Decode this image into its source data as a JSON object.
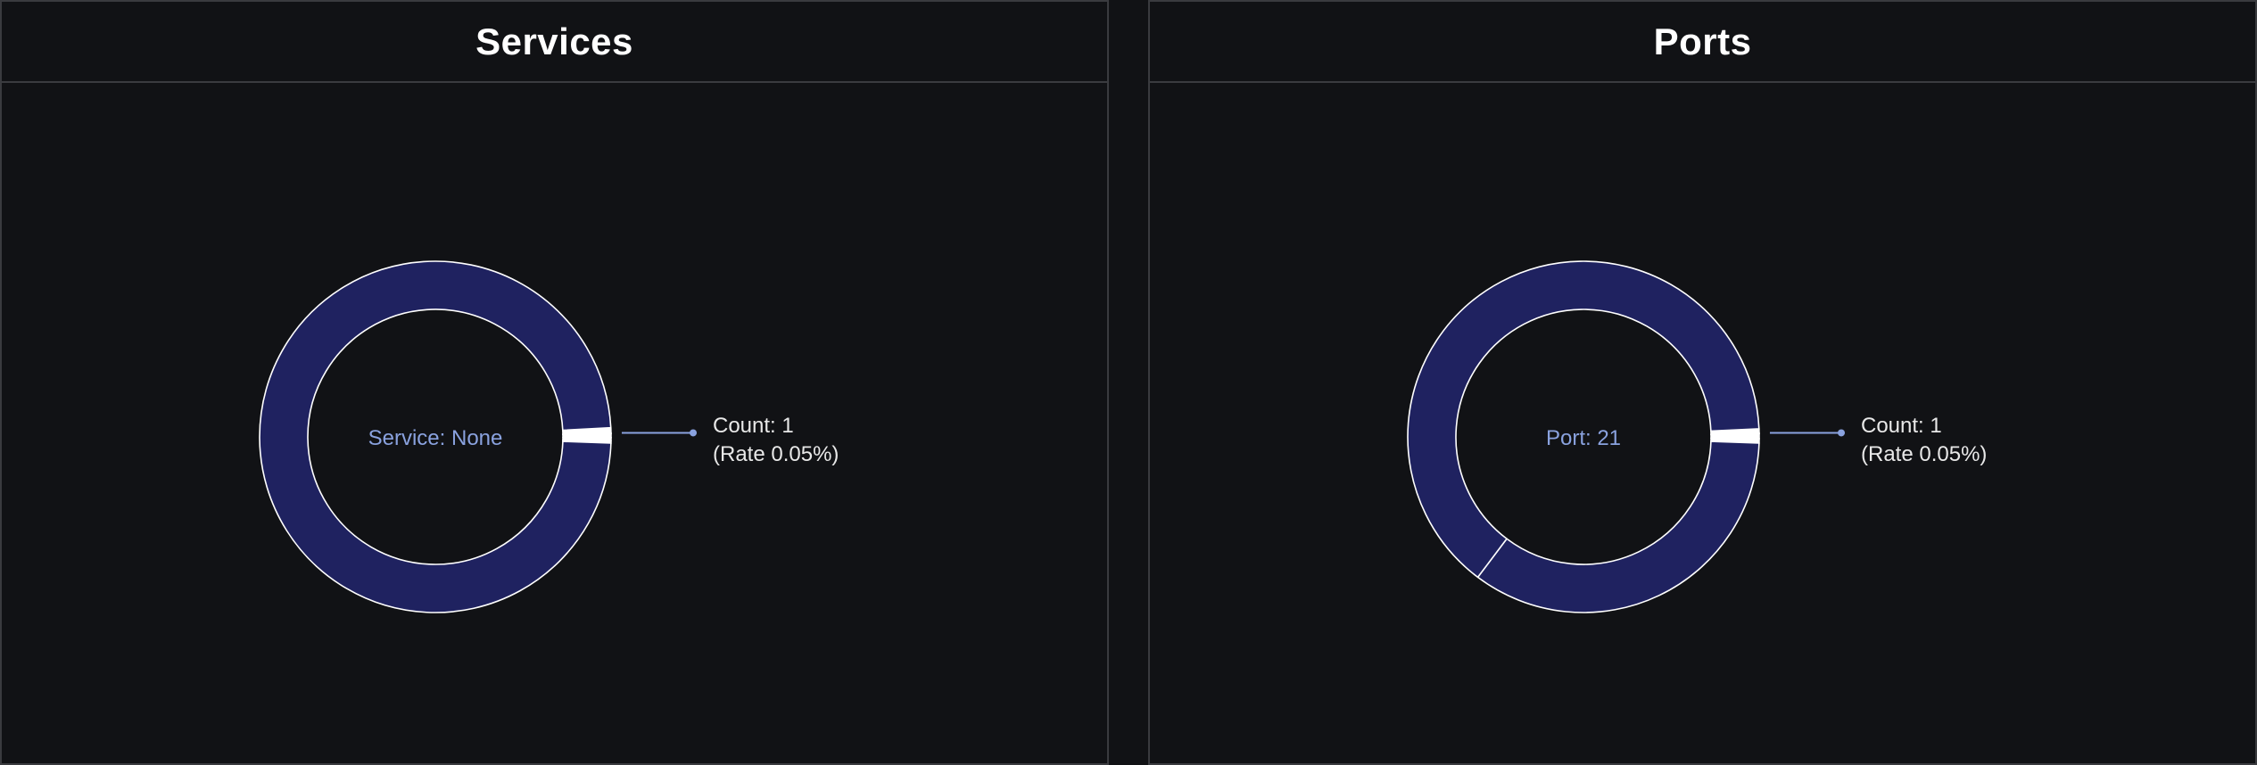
{
  "colors": {
    "background": "#111215",
    "border": "#3a3b3f",
    "slice_main": "#1f2260",
    "slice_small": "#ffffff",
    "slice_highlight": "#8aa2df",
    "leader": "#8aa2df",
    "center_label": "#8aa2df",
    "callout_text": "#e8e8e8"
  },
  "chart_data": [
    {
      "type": "pie",
      "title": "Services",
      "center_label": "Service: None",
      "callout": {
        "count": "Count: 1",
        "rate": "(Rate 0.05%)"
      },
      "slices": [
        {
          "value": 0.5,
          "color": "#ffffff"
        },
        {
          "value": 0.05,
          "color": "#8aa2df",
          "highlighted": true
        },
        {
          "value": 0.35,
          "color": "#ffffff"
        },
        {
          "value": 0.3,
          "color": "#ffffff"
        },
        {
          "value": 0.2,
          "color": "#ffffff"
        },
        {
          "value": 98.6,
          "color": "#1f2260"
        }
      ]
    },
    {
      "type": "pie",
      "title": "Ports",
      "center_label": "Port: 21",
      "callout": {
        "count": "Count: 1",
        "rate": "(Rate 0.05%)"
      },
      "slices": [
        {
          "value": 0.4,
          "color": "#ffffff"
        },
        {
          "value": 0.05,
          "color": "#8aa2df",
          "highlighted": true
        },
        {
          "value": 0.45,
          "color": "#ffffff"
        },
        {
          "value": 0.4,
          "color": "#ffffff"
        },
        {
          "value": 34.7,
          "color": "#1f2260"
        },
        {
          "value": 64.0,
          "color": "#1f2260"
        }
      ]
    }
  ]
}
